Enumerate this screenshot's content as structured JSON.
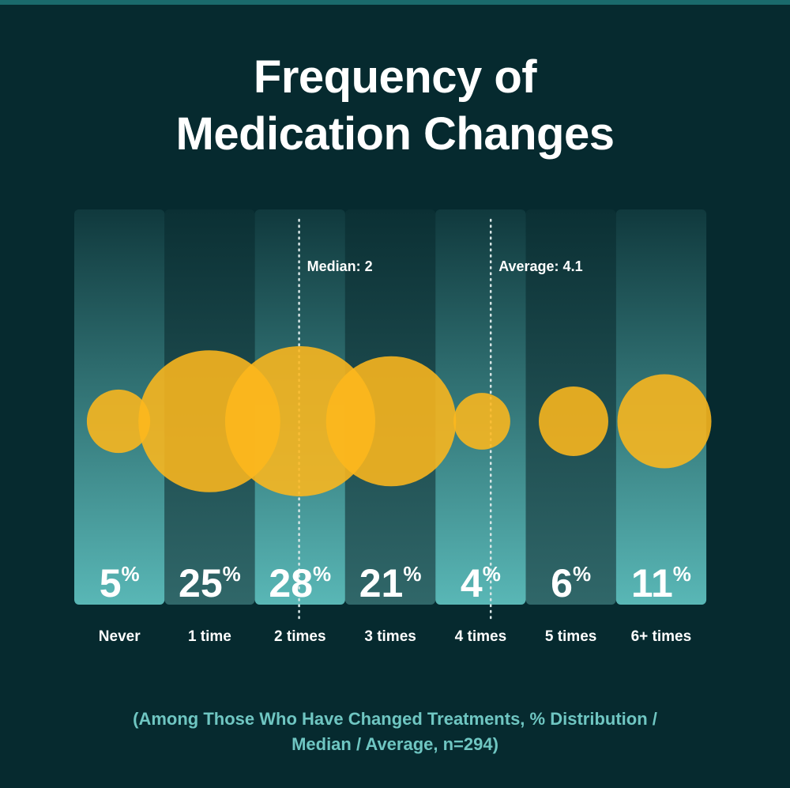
{
  "chart_data": {
    "type": "bubble",
    "title_lines": [
      "Frequency of",
      "Medication Changes"
    ],
    "categories": [
      "Never",
      "1 time",
      "2 times",
      "3 times",
      "4 times",
      "5 times",
      "6+ times"
    ],
    "values": [
      5,
      25,
      28,
      21,
      4,
      6,
      11
    ],
    "value_labels": [
      "5",
      "25",
      "28",
      "21",
      "4",
      "6",
      "11"
    ],
    "percent_symbol": "%",
    "unit": "%",
    "annotations": [
      {
        "label": "Median: 2",
        "category": "2 times",
        "value": 2
      },
      {
        "label": "Average: 4.1",
        "category": "4 times",
        "value": 4.1
      }
    ],
    "subtitle_lines": [
      "(Among Those Who Have Changed Treatments, % Distribution /",
      "Median / Average, n=294)"
    ]
  },
  "colors": {
    "background": "#062a2f",
    "bubble": "#fdb71c",
    "column_light_top": "#10393d",
    "column_light_bottom": "#59b7b6",
    "column_dark_top": "#0b3034",
    "column_dark_bottom": "#306769",
    "label": "#ffffff",
    "subtitle": "#6fc6c2",
    "guide": "#d8e6e6"
  }
}
